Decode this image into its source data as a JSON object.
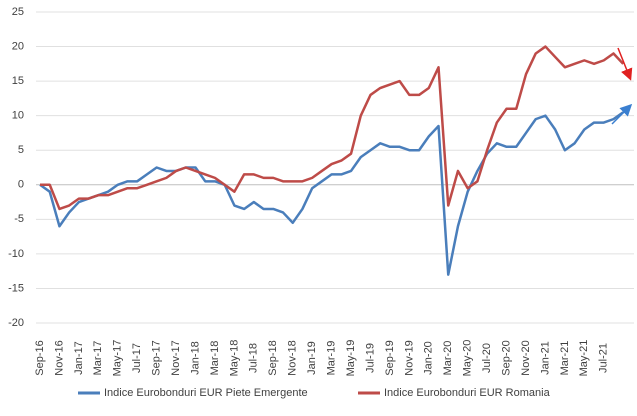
{
  "chart_data": {
    "type": "line",
    "categories": [
      "Sep-16",
      null,
      "Nov-16",
      null,
      "Jan-17",
      null,
      "Mar-17",
      null,
      "May-17",
      null,
      "Jul-17",
      null,
      "Sep-17",
      null,
      "Nov-17",
      null,
      "Jan-18",
      null,
      "Mar-18",
      null,
      "May-18",
      null,
      "Jul-18",
      null,
      "Sep-18",
      null,
      "Nov-18",
      null,
      "Jan-19",
      null,
      "Mar-19",
      null,
      "May-19",
      null,
      "Jul-19",
      null,
      "Sep-19",
      null,
      "Nov-19",
      null,
      "Jan-20",
      null,
      "Mar-20",
      null,
      "May-20",
      null,
      "Jul-20",
      null,
      "Sep-20",
      null,
      "Nov-20",
      null,
      "Jan-21",
      null,
      "Mar-21",
      null,
      "May-21",
      null,
      "Jul-21",
      null,
      null
    ],
    "series": [
      {
        "name": "Indice Eurobonduri EUR Piete Emergente",
        "color": "#4a7ebb",
        "values": [
          0,
          -1,
          -6,
          -4,
          -2.5,
          -2,
          -1.5,
          -1,
          0,
          0.5,
          0.5,
          1.5,
          2.5,
          2,
          2,
          2.5,
          2.5,
          0.5,
          0.5,
          0,
          -3,
          -3.5,
          -2.5,
          -3.5,
          -3.5,
          -4,
          -5.5,
          -3.5,
          -0.5,
          0.5,
          1.5,
          1.5,
          2,
          4,
          5,
          6,
          5.5,
          5.5,
          5,
          5,
          7,
          8.5,
          -13,
          -6,
          -1,
          2,
          4.5,
          6,
          5.5,
          5.5,
          7.5,
          9.5,
          10,
          8,
          5,
          6,
          8,
          9,
          9,
          9.5,
          10.5
        ]
      },
      {
        "name": "Indice Eurobonduri EUR Romania",
        "color": "#be4b48",
        "values": [
          0,
          0,
          -3.5,
          -3,
          -2,
          -2,
          -1.5,
          -1.5,
          -1,
          -0.5,
          -0.5,
          0,
          0.5,
          1,
          2,
          2.5,
          2,
          1.5,
          1,
          0,
          -1,
          1.5,
          1.5,
          1,
          1,
          0.5,
          0.5,
          0.5,
          1,
          2,
          3,
          3.5,
          4.5,
          10,
          13,
          14,
          14.5,
          15,
          13,
          13,
          14,
          17,
          -3,
          2,
          -0.5,
          0.5,
          5,
          9,
          11,
          11,
          16,
          19,
          20,
          18.5,
          17,
          17.5,
          18,
          17.5,
          18,
          19,
          17.5
        ]
      }
    ],
    "ylim": [
      -20,
      25
    ],
    "yticks": [
      -20,
      -15,
      -10,
      -5,
      0,
      5,
      10,
      15,
      20,
      25
    ],
    "grid": true,
    "legend": "bottom"
  }
}
